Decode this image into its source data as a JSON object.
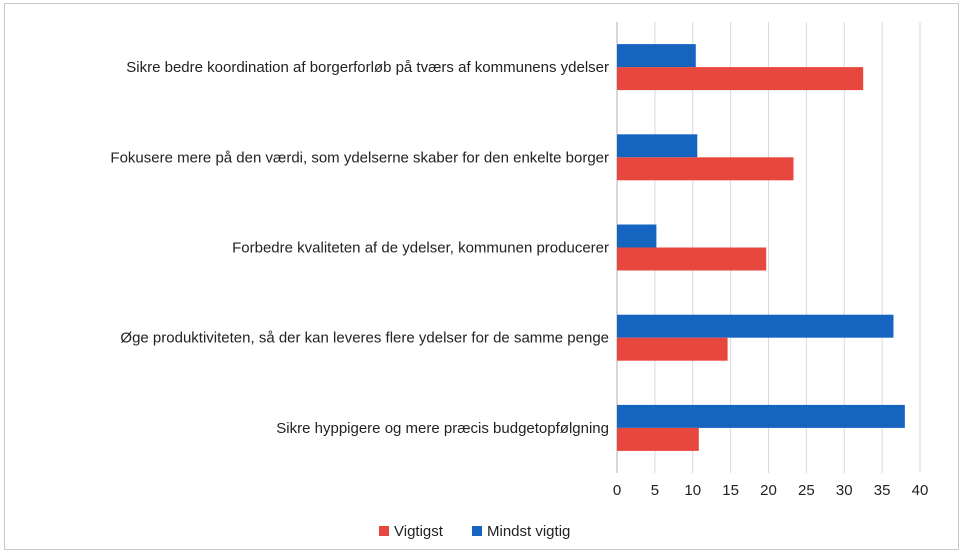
{
  "chart_data": {
    "type": "bar",
    "orientation": "horizontal",
    "title": "",
    "xlabel": "",
    "ylabel": "",
    "xlim": [
      0,
      40
    ],
    "x_ticks": [
      0,
      5,
      10,
      15,
      20,
      25,
      30,
      35,
      40
    ],
    "grid": true,
    "legend_position": "bottom",
    "categories": [
      "Sikre bedre koordination af borgerforløb på tværs af kommunens ydelser",
      "Fokusere mere på den værdi, som ydelserne skaber for den enkelte borger",
      "Forbedre kvaliteten af de ydelser, kommunen producerer",
      "Øge produktiviteten, så der kan leveres flere ydelser for de samme penge",
      "Sikre hyppigere og mere præcis budgetopfølgning"
    ],
    "series": [
      {
        "name": "Mindst vigtig",
        "color": "#1565c0",
        "values": [
          10.4,
          10.6,
          5.2,
          36.5,
          38.0
        ]
      },
      {
        "name": "Vigtigst",
        "color": "#e8473e",
        "values": [
          32.5,
          23.3,
          19.7,
          14.6,
          10.8
        ]
      }
    ],
    "legend": [
      {
        "name": "Vigtigst",
        "color": "#e8473e"
      },
      {
        "name": "Mindst vigtig",
        "color": "#1565c0"
      }
    ]
  }
}
